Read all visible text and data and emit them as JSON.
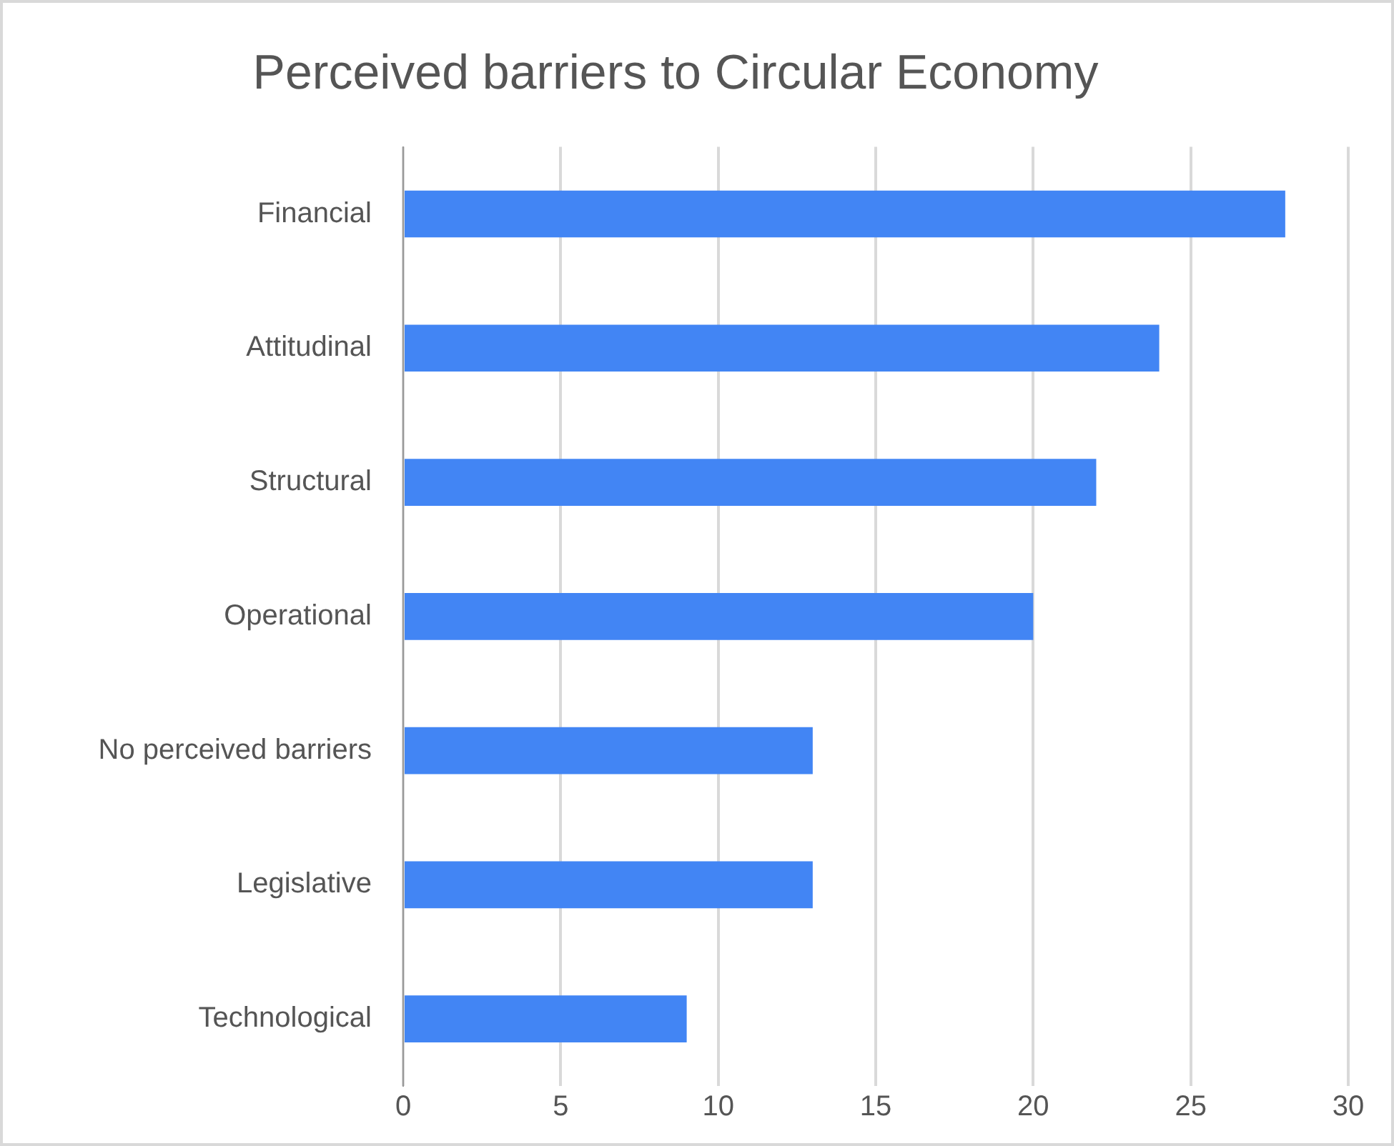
{
  "chart_data": {
    "type": "bar",
    "title": "Perceived barriers to Circular Economy",
    "orientation": "horizontal",
    "categories": [
      "Financial",
      "Attitudinal",
      "Structural",
      "Operational",
      "No perceived barriers",
      "Legislative",
      "Technological"
    ],
    "values": [
      28,
      24,
      22,
      20,
      13,
      13,
      9
    ],
    "color": "#4285f4",
    "xlim": [
      0,
      30
    ],
    "xticks": [
      0,
      5,
      10,
      15,
      20,
      25,
      30
    ],
    "grid": "x",
    "legend": false
  }
}
